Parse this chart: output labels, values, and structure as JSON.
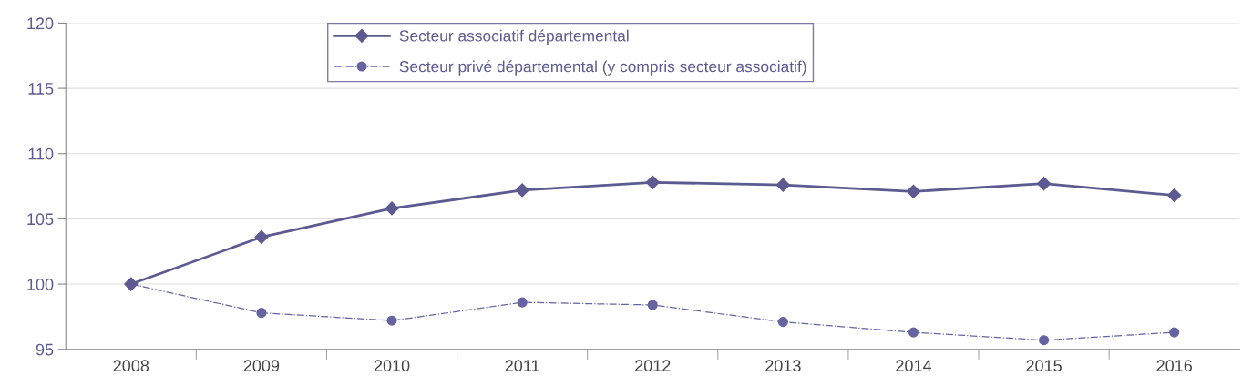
{
  "chart_data": {
    "type": "line",
    "categories": [
      "2008",
      "2009",
      "2010",
      "2011",
      "2012",
      "2013",
      "2014",
      "2015",
      "2016"
    ],
    "series": [
      {
        "name": "Secteur associatif départemental",
        "color": "#5c5a91",
        "marker": "diamond",
        "line_style": "solid",
        "values": [
          100,
          103.6,
          105.8,
          107.2,
          107.8,
          107.6,
          107.1,
          107.7,
          106.8
        ]
      },
      {
        "name": "Secteur privé départemental (y compris secteur associatif)",
        "color": "#6664a0",
        "marker": "circle",
        "line_style": "dashed",
        "values": [
          100,
          97.8,
          97.2,
          98.6,
          98.4,
          97.1,
          96.3,
          95.7,
          96.3
        ]
      }
    ],
    "ylim": [
      95,
      120
    ],
    "yticks": [
      95,
      100,
      105,
      110,
      115,
      120
    ],
    "grid": "y",
    "legend": "top"
  }
}
